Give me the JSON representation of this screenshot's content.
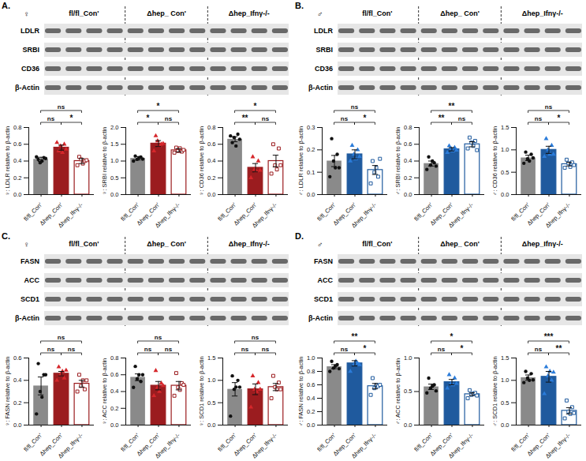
{
  "panels": [
    {
      "label": "A.",
      "sex": "♀",
      "groups": [
        "fl/fl_Con'",
        "Δhep_ Con'",
        "Δhep_Ifnγ-/-"
      ],
      "rows": [
        "LDLR",
        "SRBI",
        "CD36",
        "β-Actin"
      ]
    },
    {
      "label": "B.",
      "sex": "♂",
      "groups": [
        "fl/fl_Con'",
        "Δhep_ Con'",
        "Δhep_Ifnγ-/-"
      ],
      "rows": [
        "LDLR",
        "SRBI",
        "CD36",
        "β-Actin"
      ]
    },
    {
      "label": "C.",
      "sex": "♀",
      "groups": [
        "fl/fl_Con'",
        "Δhep_ Con'",
        "Δhep_Ifnγ-/-"
      ],
      "rows": [
        "FASN",
        "ACC",
        "SCD1",
        "β-Actin"
      ]
    },
    {
      "label": "D.",
      "sex": "♂",
      "groups": [
        "fl/fl_Con'",
        "Δhep_ Con'",
        "Δhep_Ifnγ-/-"
      ],
      "rows": [
        "FASN",
        "ACC",
        "SCD1",
        "β-Actin"
      ]
    }
  ],
  "chart_data": [
    {
      "type": "bar",
      "ylabel": "♀: LDLR relative to β-actin",
      "categories": [
        "fl/fl_Con'",
        "Δhep_Con'",
        "Δhep_Ifnγ-/-"
      ],
      "values": [
        0.42,
        0.56,
        0.4
      ],
      "errors": [
        0.025,
        0.03,
        0.03
      ],
      "points": [
        [
          0.45,
          0.42,
          0.38,
          0.4,
          0.44,
          0.43
        ],
        [
          0.62,
          0.52,
          0.58,
          0.5,
          0.6,
          0.54
        ],
        [
          0.35,
          0.45,
          0.42,
          0.37,
          0.4,
          0.41
        ]
      ],
      "colors": [
        "#8a8a8a",
        "#9b1c1f",
        "#ffffff"
      ],
      "markers": [
        "circle",
        "triangle",
        "square"
      ],
      "ylim": [
        0,
        0.8
      ],
      "yticks": [
        {
          "value": 0,
          "label": "0.0"
        },
        0.2,
        0.4,
        0.6,
        0.8
      ],
      "comparisons": [
        {
          "groups": [
            0,
            2
          ],
          "label": "ns"
        },
        {
          "groups": [
            0,
            1
          ],
          "label": "ns"
        },
        {
          "groups": [
            1,
            2
          ],
          "label": "*"
        }
      ]
    },
    {
      "type": "bar",
      "ylabel": "♀: SRBI relative to β-actin",
      "categories": [
        "fl/fl_Con'",
        "Δhep_Con'",
        "Δhep_Ifnγ-/-"
      ],
      "values": [
        1.08,
        1.52,
        1.32
      ],
      "errors": [
        0.05,
        0.09,
        0.05
      ],
      "points": [
        [
          1.0,
          1.15,
          1.05,
          1.1,
          1.12,
          1.06
        ],
        [
          1.3,
          1.75,
          1.6,
          1.45,
          1.5,
          1.52
        ],
        [
          1.25,
          1.4,
          1.3,
          1.38,
          1.28,
          1.33
        ]
      ],
      "colors": [
        "#8a8a8a",
        "#9b1c1f",
        "#ffffff"
      ],
      "markers": [
        "circle",
        "triangle",
        "square"
      ],
      "ylim": [
        0,
        2
      ],
      "yticks": [
        {
          "value": 0,
          "label": "0.0"
        },
        0.5,
        {
          "value": 1,
          "label": "1.0"
        },
        1.5,
        {
          "value": 2,
          "label": "2.0"
        }
      ],
      "comparisons": [
        {
          "groups": [
            0,
            2
          ],
          "label": "*"
        },
        {
          "groups": [
            0,
            1
          ],
          "label": "*"
        },
        {
          "groups": [
            1,
            2
          ],
          "label": "ns"
        }
      ]
    },
    {
      "type": "bar",
      "ylabel": "♀: CD36 relative to β-actin",
      "categories": [
        "fl/fl_Con'",
        "Δhep_Con'",
        "Δhep_Ifnγ-/-"
      ],
      "values": [
        0.66,
        0.32,
        0.4
      ],
      "errors": [
        0.03,
        0.05,
        0.07
      ],
      "points": [
        [
          0.7,
          0.62,
          0.68,
          0.58,
          0.72,
          0.66
        ],
        [
          0.2,
          0.45,
          0.3,
          0.28,
          0.4,
          0.29
        ],
        [
          0.25,
          0.6,
          0.35,
          0.3,
          0.55,
          0.35
        ]
      ],
      "colors": [
        "#8a8a8a",
        "#9b1c1f",
        "#ffffff"
      ],
      "markers": [
        "circle",
        "triangle",
        "square"
      ],
      "ylim": [
        0,
        0.8
      ],
      "yticks": [
        {
          "value": 0,
          "label": "0.0"
        },
        0.2,
        0.4,
        0.6,
        0.8
      ],
      "comparisons": [
        {
          "groups": [
            0,
            2
          ],
          "label": "*"
        },
        {
          "groups": [
            0,
            1
          ],
          "label": "**"
        },
        {
          "groups": [
            1,
            2
          ],
          "label": "ns"
        }
      ]
    },
    {
      "type": "bar",
      "ylabel": "♂: LDLR relative to β-actin",
      "categories": [
        "fl/fl_Con'",
        "Δhep_Con'",
        "Δhep_Ifnγ-/-"
      ],
      "values": [
        0.15,
        0.18,
        0.11
      ],
      "errors": [
        0.025,
        0.02,
        0.02
      ],
      "points": [
        [
          0.08,
          0.25,
          0.15,
          0.12,
          0.18,
          0.12
        ],
        [
          0.15,
          0.22,
          0.18,
          0.16,
          0.2,
          0.17
        ],
        [
          0.05,
          0.15,
          0.1,
          0.12,
          0.08,
          0.16
        ]
      ],
      "colors": [
        "#8a8a8a",
        "#1f5a9e",
        "#ffffff"
      ],
      "markers": [
        "circle",
        "triangle",
        "square"
      ],
      "ylim": [
        0,
        0.3
      ],
      "yticks": [
        {
          "value": 0,
          "label": "0.0"
        },
        0.1,
        0.2,
        0.3
      ],
      "comparisons": [
        {
          "groups": [
            0,
            2
          ],
          "label": "ns"
        },
        {
          "groups": [
            0,
            1
          ],
          "label": "ns"
        },
        {
          "groups": [
            1,
            2
          ],
          "label": "*"
        }
      ]
    },
    {
      "type": "bar",
      "ylabel": "♂: SRBI relative to β-actin",
      "categories": [
        "fl/fl_Con'",
        "Δhep_Con'",
        "Δhep_Ifnγ-/-"
      ],
      "values": [
        0.37,
        0.54,
        0.6
      ],
      "errors": [
        0.03,
        0.02,
        0.03
      ],
      "points": [
        [
          0.3,
          0.45,
          0.35,
          0.4,
          0.38,
          0.34
        ],
        [
          0.5,
          0.58,
          0.55,
          0.52,
          0.56,
          0.53
        ],
        [
          0.55,
          0.68,
          0.62,
          0.58,
          0.64,
          0.53
        ]
      ],
      "colors": [
        "#8a8a8a",
        "#1f5a9e",
        "#ffffff"
      ],
      "markers": [
        "circle",
        "triangle",
        "square"
      ],
      "ylim": [
        0,
        0.8
      ],
      "yticks": [
        {
          "value": 0,
          "label": "0.0"
        },
        0.2,
        0.4,
        0.6,
        0.8
      ],
      "comparisons": [
        {
          "groups": [
            0,
            2
          ],
          "label": "**"
        },
        {
          "groups": [
            0,
            1
          ],
          "label": "**"
        },
        {
          "groups": [
            1,
            2
          ],
          "label": "ns"
        }
      ]
    },
    {
      "type": "bar",
      "ylabel": "♂: CD36 relative to β-actin",
      "categories": [
        "fl/fl_Con'",
        "Δhep_Con'",
        "Δhep_Ifnγ-/-"
      ],
      "values": [
        0.82,
        1.0,
        0.68
      ],
      "errors": [
        0.06,
        0.08,
        0.04
      ],
      "points": [
        [
          0.7,
          0.95,
          0.8,
          0.75,
          0.9,
          0.82
        ],
        [
          0.85,
          1.25,
          1.0,
          0.9,
          1.1,
          0.9
        ],
        [
          0.6,
          0.78,
          0.7,
          0.62,
          0.72,
          0.66
        ]
      ],
      "colors": [
        "#8a8a8a",
        "#1f5a9e",
        "#ffffff"
      ],
      "markers": [
        "circle",
        "triangle",
        "square"
      ],
      "ylim": [
        0,
        1.5
      ],
      "yticks": [
        {
          "value": 0,
          "label": "0.0"
        },
        0.5,
        {
          "value": 1,
          "label": "1.0"
        },
        1.5
      ],
      "comparisons": [
        {
          "groups": [
            0,
            2
          ],
          "label": "ns"
        },
        {
          "groups": [
            0,
            1
          ],
          "label": "ns"
        },
        {
          "groups": [
            1,
            2
          ],
          "label": "*"
        }
      ]
    },
    {
      "type": "bar",
      "ylabel": "♀: FASN relative to β-actin",
      "categories": [
        "fl/fl_Con'",
        "Δhep_Con'",
        "Δhep_Ifnγ-/-"
      ],
      "values": [
        0.35,
        0.46,
        0.37
      ],
      "errors": [
        0.08,
        0.02,
        0.03
      ],
      "points": [
        [
          0.1,
          0.55,
          0.3,
          0.25,
          0.45,
          0.45
        ],
        [
          0.4,
          0.52,
          0.45,
          0.48,
          0.42,
          0.49
        ],
        [
          0.3,
          0.45,
          0.35,
          0.4,
          0.32,
          0.4
        ]
      ],
      "colors": [
        "#8a8a8a",
        "#9b1c1f",
        "#ffffff"
      ],
      "markers": [
        "circle",
        "triangle",
        "square"
      ],
      "ylim": [
        0,
        0.6
      ],
      "yticks": [
        {
          "value": 0,
          "label": "0.0"
        },
        0.2,
        0.4,
        0.6
      ],
      "comparisons": [
        {
          "groups": [
            0,
            2
          ],
          "label": "ns"
        },
        {
          "groups": [
            0,
            1
          ],
          "label": "ns"
        },
        {
          "groups": [
            1,
            2
          ],
          "label": "ns"
        }
      ]
    },
    {
      "type": "bar",
      "ylabel": "♀: ACC relative to β-actin",
      "categories": [
        "fl/fl_Con'",
        "Δhep_Con'",
        "Δhep_Ifnγ-/-"
      ],
      "values": [
        0.57,
        0.47,
        0.47
      ],
      "errors": [
        0.04,
        0.05,
        0.05
      ],
      "points": [
        [
          0.45,
          0.7,
          0.55,
          0.6,
          0.52,
          0.6
        ],
        [
          0.35,
          0.65,
          0.45,
          0.4,
          0.5,
          0.47
        ],
        [
          0.35,
          0.62,
          0.45,
          0.42,
          0.5,
          0.48
        ]
      ],
      "colors": [
        "#8a8a8a",
        "#9b1c1f",
        "#ffffff"
      ],
      "markers": [
        "circle",
        "triangle",
        "square"
      ],
      "ylim": [
        0,
        0.8
      ],
      "yticks": [
        {
          "value": 0,
          "label": "0.0"
        },
        0.2,
        0.4,
        0.6,
        0.8
      ],
      "comparisons": [
        {
          "groups": [
            0,
            2
          ],
          "label": "ns"
        },
        {
          "groups": [
            0,
            1
          ],
          "label": "ns"
        },
        {
          "groups": [
            1,
            2
          ],
          "label": "ns"
        }
      ]
    },
    {
      "type": "bar",
      "ylabel": "♀: SCD1 relative to β-actin",
      "categories": [
        "fl/fl_Con'",
        "Δhep_Con'",
        "Δhep_Ifnγ-/-"
      ],
      "values": [
        0.8,
        0.8,
        0.85
      ],
      "errors": [
        0.15,
        0.12,
        0.08
      ],
      "points": [
        [
          0.2,
          1.1,
          0.8,
          0.85,
          1.0,
          0.85
        ],
        [
          0.4,
          1.1,
          0.8,
          0.75,
          0.95,
          0.8
        ],
        [
          0.6,
          1.1,
          0.85,
          0.8,
          0.95,
          0.8
        ]
      ],
      "colors": [
        "#8a8a8a",
        "#9b1c1f",
        "#ffffff"
      ],
      "markers": [
        "circle",
        "triangle",
        "square"
      ],
      "ylim": [
        0,
        1.5
      ],
      "yticks": [
        {
          "value": 0,
          "label": "0.0"
        },
        0.5,
        {
          "value": 1,
          "label": "1.0"
        },
        1.5
      ],
      "comparisons": [
        {
          "groups": [
            0,
            2
          ],
          "label": "ns"
        },
        {
          "groups": [
            0,
            1
          ],
          "label": "ns"
        },
        {
          "groups": [
            1,
            2
          ],
          "label": "ns"
        }
      ]
    },
    {
      "type": "bar",
      "ylabel": "♂: FASN relative to β-actin",
      "categories": [
        "fl/fl_Con'",
        "Δhep_Con'",
        "Δhep_Ifnγ-/-"
      ],
      "values": [
        0.87,
        0.92,
        0.58
      ],
      "errors": [
        0.03,
        0.04,
        0.04
      ],
      "points": [
        [
          0.8,
          0.95,
          0.85,
          0.88,
          0.9,
          0.84
        ],
        [
          0.8,
          1.05,
          0.9,
          0.95,
          0.92,
          0.9
        ],
        [
          0.45,
          0.7,
          0.55,
          0.6,
          0.58,
          0.6
        ]
      ],
      "colors": [
        "#8a8a8a",
        "#1f5a9e",
        "#ffffff"
      ],
      "markers": [
        "circle",
        "triangle",
        "square"
      ],
      "ylim": [
        0,
        1
      ],
      "yticks": [
        {
          "value": 0,
          "label": "0.0"
        },
        0.2,
        0.4,
        0.6,
        0.8,
        {
          "value": 1,
          "label": "1.0"
        }
      ],
      "comparisons": [
        {
          "groups": [
            0,
            2
          ],
          "label": "**"
        },
        {
          "groups": [
            0,
            1
          ],
          "label": "ns"
        },
        {
          "groups": [
            1,
            2
          ],
          "label": "*"
        }
      ]
    },
    {
      "type": "bar",
      "ylabel": "♂: ACC relative to β-actin",
      "categories": [
        "fl/fl_Con'",
        "Δhep_Con'",
        "Δhep_Ifnγ-/-"
      ],
      "values": [
        0.57,
        0.64,
        0.46
      ],
      "errors": [
        0.04,
        0.04,
        0.02
      ],
      "points": [
        [
          0.48,
          0.7,
          0.55,
          0.58,
          0.6,
          0.51
        ],
        [
          0.55,
          0.75,
          0.62,
          0.6,
          0.7,
          0.62
        ],
        [
          0.4,
          0.52,
          0.45,
          0.47,
          0.48,
          0.44
        ]
      ],
      "colors": [
        "#8a8a8a",
        "#1f5a9e",
        "#ffffff"
      ],
      "markers": [
        "circle",
        "triangle",
        "square"
      ],
      "ylim": [
        0,
        1
      ],
      "yticks": [
        {
          "value": 0,
          "label": "0.0"
        },
        0.5,
        {
          "value": 1,
          "label": "1.0"
        }
      ],
      "comparisons": [
        {
          "groups": [
            0,
            2
          ],
          "label": "*"
        },
        {
          "groups": [
            0,
            1
          ],
          "label": "ns"
        },
        {
          "groups": [
            1,
            2
          ],
          "label": "*"
        }
      ]
    },
    {
      "type": "bar",
      "ylabel": "♂: SCD1 relative to β-actin",
      "categories": [
        "fl/fl_Con'",
        "Δhep_Con'",
        "Δhep_Ifnγ-/-"
      ],
      "values": [
        1.06,
        1.08,
        0.32
      ],
      "errors": [
        0.06,
        0.12,
        0.07
      ],
      "points": [
        [
          0.95,
          1.2,
          1.05,
          1.0,
          1.15,
          1.01
        ],
        [
          0.7,
          1.3,
          1.1,
          1.2,
          1.0,
          1.18
        ],
        [
          0.15,
          0.55,
          0.3,
          0.25,
          0.4,
          0.27
        ]
      ],
      "colors": [
        "#8a8a8a",
        "#1f5a9e",
        "#ffffff"
      ],
      "markers": [
        "circle",
        "triangle",
        "square"
      ],
      "ylim": [
        0,
        1.5
      ],
      "yticks": [
        {
          "value": 0,
          "label": "0.0"
        },
        0.5,
        {
          "value": 1,
          "label": "1.0"
        },
        1.5
      ],
      "comparisons": [
        {
          "groups": [
            0,
            2
          ],
          "label": "***"
        },
        {
          "groups": [
            0,
            1
          ],
          "label": "ns"
        },
        {
          "groups": [
            1,
            2
          ],
          "label": "**"
        }
      ]
    }
  ]
}
